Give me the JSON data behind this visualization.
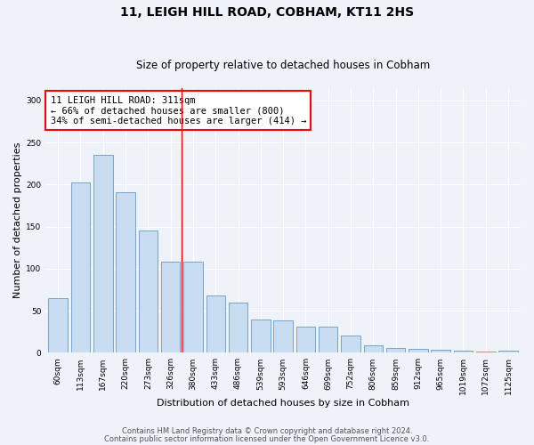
{
  "title": "11, LEIGH HILL ROAD, COBHAM, KT11 2HS",
  "subtitle": "Size of property relative to detached houses in Cobham",
  "xlabel": "Distribution of detached houses by size in Cobham",
  "ylabel": "Number of detached properties",
  "categories": [
    "60sqm",
    "113sqm",
    "167sqm",
    "220sqm",
    "273sqm",
    "326sqm",
    "380sqm",
    "433sqm",
    "486sqm",
    "539sqm",
    "593sqm",
    "646sqm",
    "699sqm",
    "752sqm",
    "806sqm",
    "859sqm",
    "912sqm",
    "965sqm",
    "1019sqm",
    "1072sqm",
    "1125sqm"
  ],
  "values": [
    65,
    202,
    235,
    191,
    145,
    108,
    108,
    68,
    60,
    39,
    38,
    31,
    31,
    21,
    9,
    6,
    5,
    4,
    3,
    1,
    2
  ],
  "bar_color": "#c9ddf2",
  "bar_edge_color": "#7ba3c8",
  "vline_x": 5.5,
  "vline_color": "red",
  "annotation_text": "11 LEIGH HILL ROAD: 311sqm\n← 66% of detached houses are smaller (800)\n34% of semi-detached houses are larger (414) →",
  "annotation_box_color": "white",
  "annotation_box_edge_color": "red",
  "ylim": [
    0,
    315
  ],
  "yticks": [
    0,
    50,
    100,
    150,
    200,
    250,
    300
  ],
  "footer_line1": "Contains HM Land Registry data © Crown copyright and database right 2024.",
  "footer_line2": "Contains public sector information licensed under the Open Government Licence v3.0.",
  "bg_color": "#eef2f9",
  "plot_bg_color": "#eef2f9",
  "grid_color": "white",
  "title_fontsize": 10,
  "subtitle_fontsize": 8.5,
  "xlabel_fontsize": 8,
  "ylabel_fontsize": 8,
  "tick_fontsize": 6.5,
  "annotation_fontsize": 7.5,
  "footer_fontsize": 6
}
